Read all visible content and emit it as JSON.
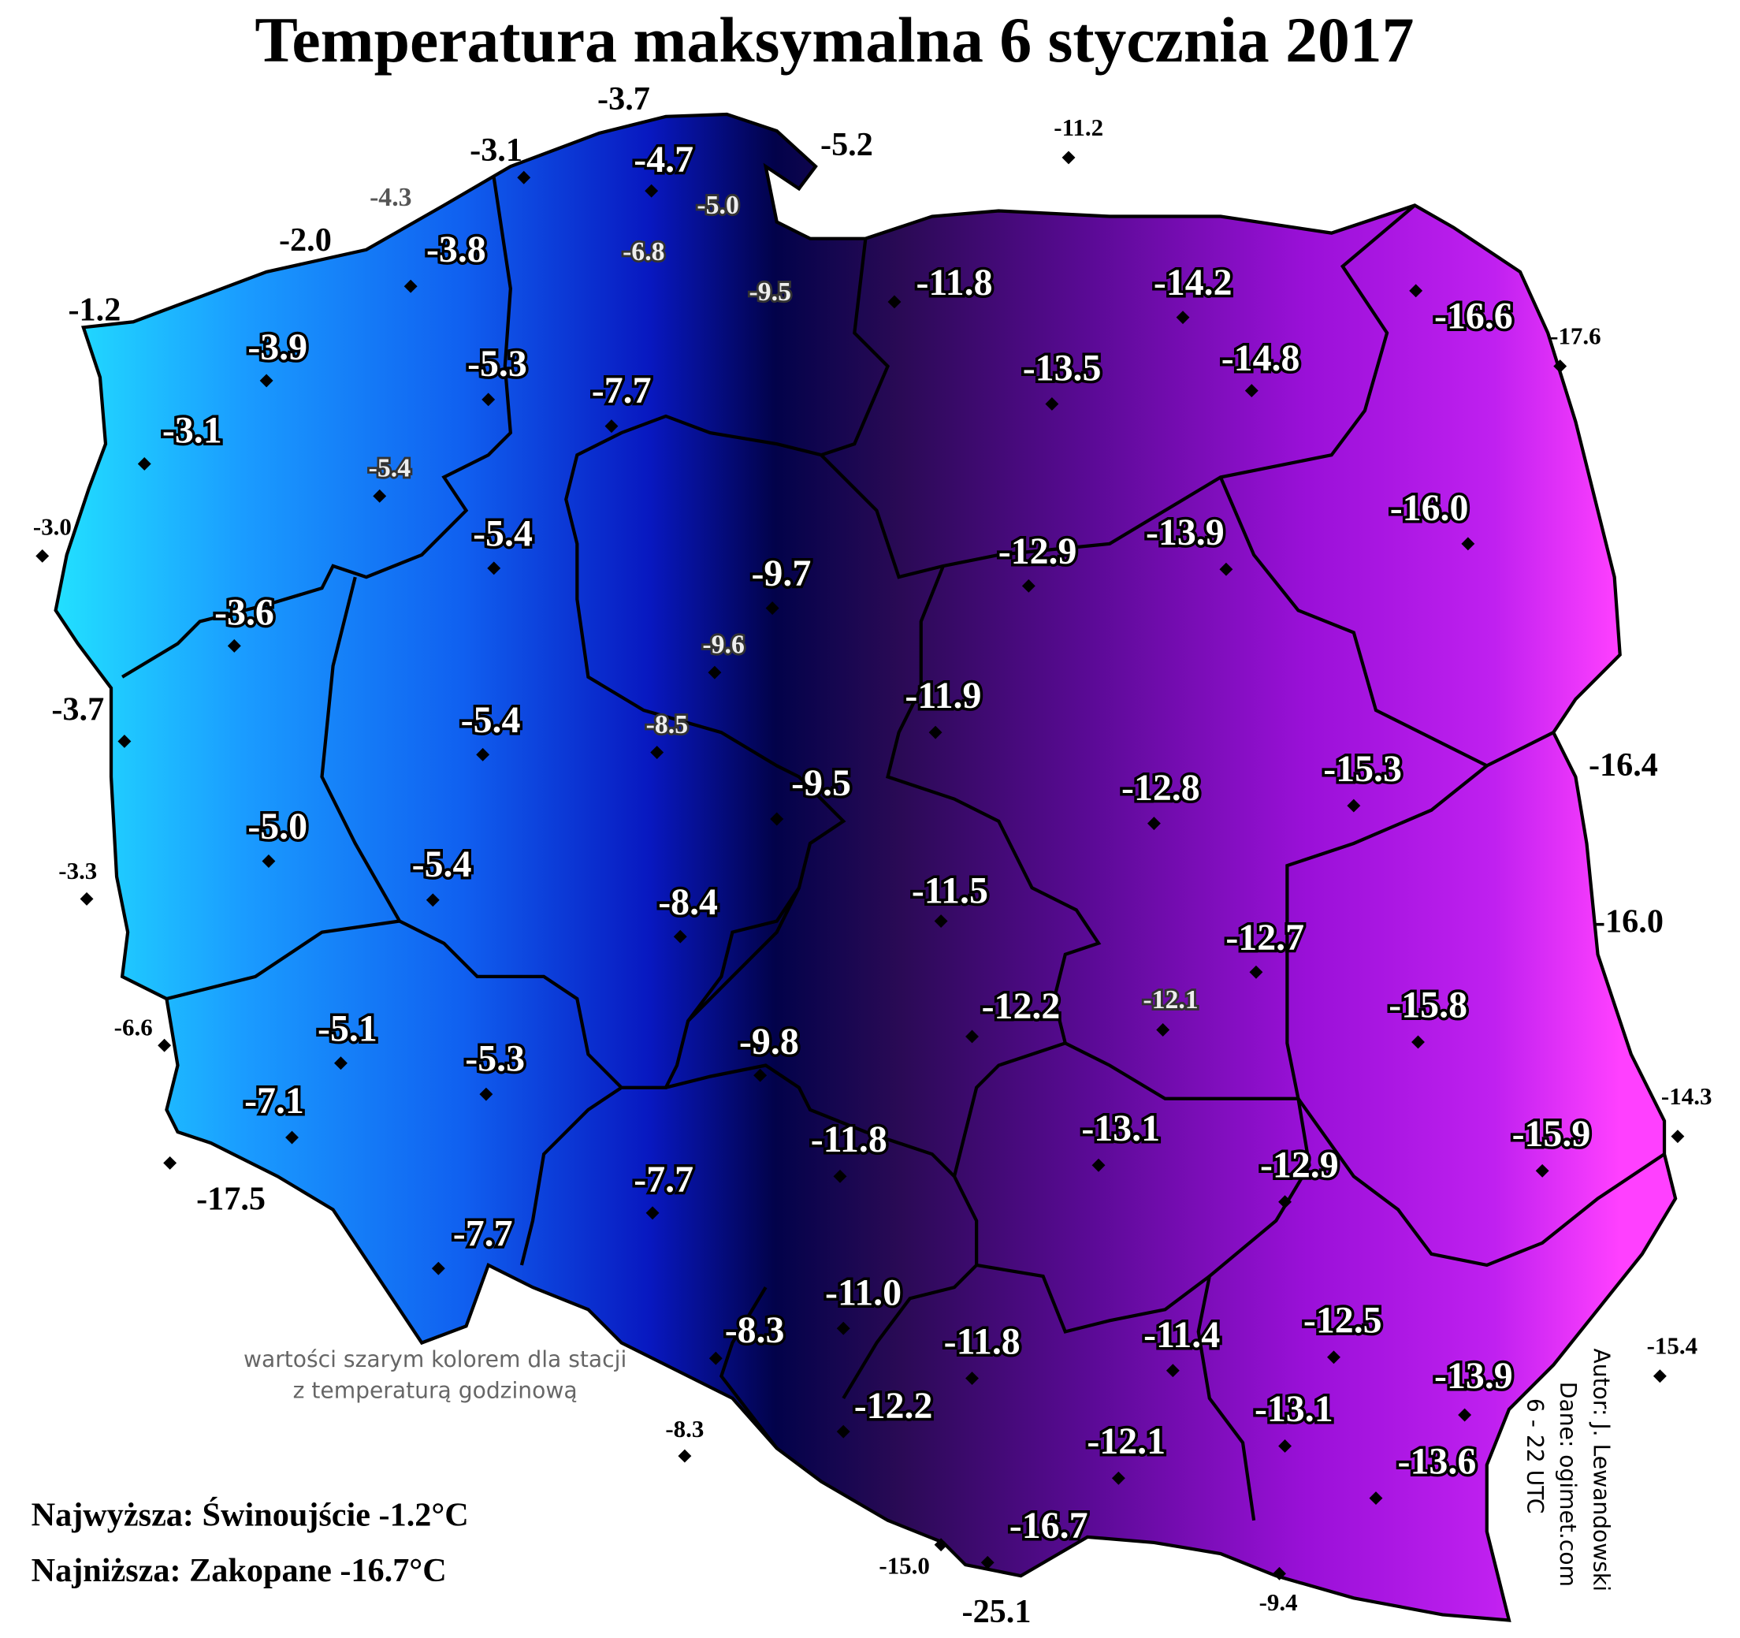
{
  "title": "Temperatura maksymalna 6 stycznia 2017",
  "stations": [
    "-4.7",
    "-3.8",
    "-3.9",
    "-5.3",
    "-7.7",
    "-3.1",
    "-11.8",
    "-14.2",
    "-16.6",
    "-13.5",
    "-14.8",
    "-5.4",
    "-16.0",
    "-12.9",
    "-13.9",
    "-9.7",
    "-3.6",
    "-11.9",
    "-5.4",
    "-12.8",
    "-15.3",
    "-9.5",
    "-5.0",
    "-5.4",
    "-8.4",
    "-11.5",
    "-12.7",
    "-12.2",
    "-15.8",
    "-5.1",
    "-9.8",
    "-5.3",
    "-7.1",
    "-13.1",
    "-15.9",
    "-11.8",
    "-12.9",
    "-7.7",
    "-7.7",
    "-11.0",
    "-8.3",
    "-12.5",
    "-11.8",
    "-11.4",
    "-13.9",
    "-12.2",
    "-13.1",
    "-12.1",
    "-13.6",
    "-16.7"
  ],
  "border_stations": [
    "-3.7",
    "-5.2",
    "-11.2",
    "-3.1",
    "-2.0",
    "-1.2",
    "-17.6",
    "-3.0",
    "-3.7",
    "-16.4",
    "-3.3",
    "-16.0",
    "-6.6",
    "-17.5",
    "-14.3",
    "-15.4",
    "-8.3",
    "-15.0",
    "-25.1",
    "-9.4"
  ],
  "hourly_stations": [
    "-4.3",
    "-5.0",
    "-6.8",
    "-9.5",
    "-5.4",
    "-9.6",
    "-8.5",
    "-12.1"
  ],
  "note": [
    "wartości szarym kolorem dla stacji",
    "z temperaturą godzinową"
  ],
  "extremes": [
    "Najwyższa: Świnoujście -1.2°C",
    "Najniższa: Zakopane -16.7°C"
  ],
  "credits": [
    "Autor: J. Lewandowski",
    "Dane: ogimet.com",
    "6 - 22 UTC"
  ]
}
